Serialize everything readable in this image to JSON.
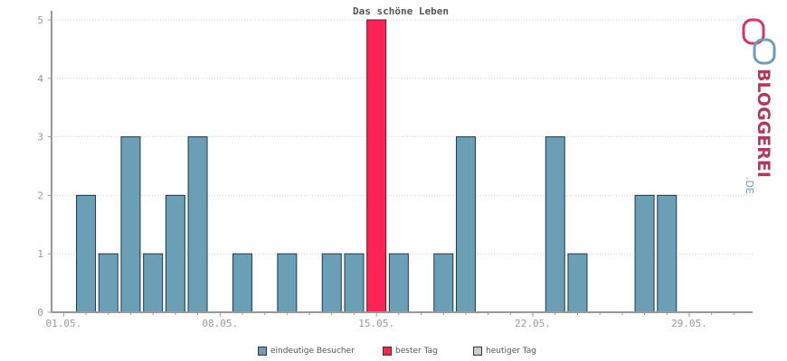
{
  "chart_data": {
    "type": "bar",
    "title": "Das schöne Leben",
    "categories": [
      "01.05.",
      "02.05.",
      "03.05.",
      "04.05.",
      "05.05.",
      "06.05.",
      "07.05.",
      "08.05.",
      "09.05.",
      "10.05.",
      "11.05.",
      "12.05.",
      "13.05.",
      "14.05.",
      "15.05.",
      "16.05.",
      "17.05.",
      "18.05.",
      "19.05.",
      "20.05.",
      "21.05.",
      "22.05.",
      "23.05.",
      "24.05.",
      "25.05.",
      "26.05.",
      "27.05.",
      "28.05.",
      "29.05.",
      "30.05.",
      "31.05."
    ],
    "tick_labels": [
      "01.05.",
      "08.05.",
      "15.05.",
      "22.05.",
      "29.05."
    ],
    "values": [
      0,
      2,
      1,
      3,
      1,
      2,
      3,
      0,
      1,
      0,
      1,
      0,
      1,
      1,
      5,
      1,
      0,
      1,
      3,
      0,
      0,
      0,
      3,
      1,
      0,
      0,
      2,
      2,
      0,
      0,
      0
    ],
    "best_index": 14,
    "ylim": [
      0,
      5
    ],
    "yticks": [
      0,
      1,
      2,
      3,
      4,
      5
    ],
    "grid": true,
    "legend_placement": "bottom",
    "legend": [
      {
        "label": "eindeutige Besucher",
        "color": "#6a9fb5"
      },
      {
        "label": "bester Tag",
        "color": "#ff2255"
      },
      {
        "label": "heutiger Tag",
        "color": "#cccccc"
      }
    ],
    "colors": {
      "bar": "#6a9fb5",
      "best": "#ff2255",
      "border": "#1e3a4a"
    }
  },
  "brand": {
    "name": "BLOGGEREI",
    "suffix": ".DE"
  }
}
